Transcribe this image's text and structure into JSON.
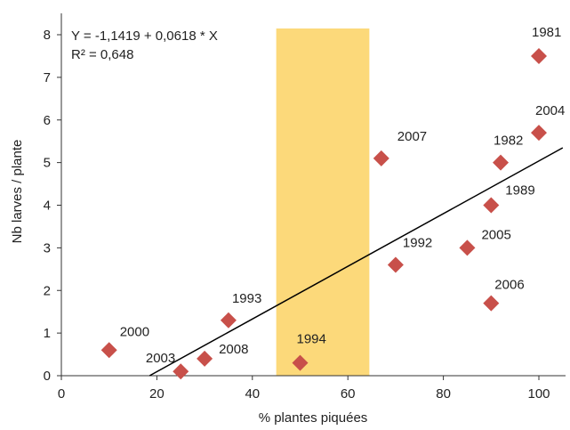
{
  "chart_data": {
    "type": "scatter",
    "xlabel": "% plantes piquées",
    "ylabel": "Nb larves / plante",
    "xlim": [
      0,
      105
    ],
    "ylim": [
      0,
      8.5
    ],
    "xticks": [
      0,
      20,
      40,
      60,
      80,
      100
    ],
    "yticks": [
      0,
      1,
      2,
      3,
      4,
      5,
      6,
      7,
      8
    ],
    "grid": false,
    "highlight_band": {
      "x": [
        45,
        64.5
      ],
      "color": "#FCD97A"
    },
    "marker_color": "#C8504A",
    "line_color": "#000000",
    "regression": {
      "intercept": -1.1419,
      "slope": 0.0618,
      "equation": "Y = -1,1419 + 0,0618 * X",
      "r2_label": "R² = 0,648"
    },
    "points": [
      {
        "label": "2000",
        "x": 10,
        "y": 0.6
      },
      {
        "label": "2003",
        "x": 25,
        "y": 0.1
      },
      {
        "label": "2008",
        "x": 30,
        "y": 0.4
      },
      {
        "label": "1993",
        "x": 35,
        "y": 1.3
      },
      {
        "label": "1994",
        "x": 50,
        "y": 0.3
      },
      {
        "label": "2007",
        "x": 67,
        "y": 5.1
      },
      {
        "label": "1992",
        "x": 70,
        "y": 2.6
      },
      {
        "label": "2005",
        "x": 85,
        "y": 3.0
      },
      {
        "label": "1989",
        "x": 90,
        "y": 4.0
      },
      {
        "label": "2006",
        "x": 90,
        "y": 1.7
      },
      {
        "label": "1982",
        "x": 92,
        "y": 5.0
      },
      {
        "label": "2004",
        "x": 100,
        "y": 5.7
      },
      {
        "label": "1981",
        "x": 100,
        "y": 7.5
      }
    ]
  }
}
